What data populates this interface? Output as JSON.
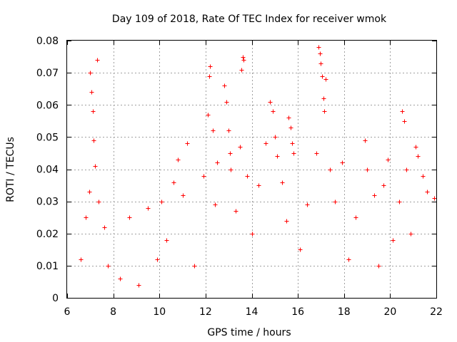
{
  "chart_data": {
    "type": "scatter",
    "title": "Day 109 of 2018, Rate Of TEC Index for receiver wmok",
    "xlabel": "GPS time / hours",
    "ylabel": "ROTI / TECUs",
    "xlim": [
      6,
      22
    ],
    "ylim": [
      0,
      0.08
    ],
    "x_ticks": [
      6,
      8,
      10,
      12,
      14,
      16,
      18,
      20,
      22
    ],
    "y_ticks": [
      0,
      0.01,
      0.02,
      0.03,
      0.04,
      0.05,
      0.06,
      0.07,
      0.08
    ],
    "x_tick_labels": [
      "6",
      "8",
      "10",
      "12",
      "14",
      "16",
      "18",
      "20",
      "22"
    ],
    "y_tick_labels": [
      "0",
      "0.01",
      "0.02",
      "0.03",
      "0.04",
      "0.05",
      "0.06",
      "0.07",
      "0.08"
    ],
    "grid": true,
    "marker": "+",
    "color": "#ff0000",
    "series": [
      {
        "name": "ROTI",
        "x": [
          6.6,
          6.8,
          6.95,
          7.0,
          7.05,
          7.1,
          7.15,
          7.2,
          7.3,
          7.35,
          7.6,
          7.75,
          8.3,
          8.7,
          9.1,
          9.5,
          9.9,
          10.1,
          10.3,
          10.6,
          10.8,
          11.0,
          11.2,
          11.5,
          11.9,
          12.1,
          12.15,
          12.2,
          12.3,
          12.4,
          12.5,
          12.8,
          12.9,
          13.0,
          13.05,
          13.1,
          13.3,
          13.5,
          13.55,
          13.6,
          13.65,
          13.8,
          14.0,
          14.3,
          14.6,
          14.8,
          14.9,
          15.0,
          15.1,
          15.3,
          15.5,
          15.6,
          15.7,
          15.75,
          15.8,
          16.1,
          16.4,
          16.8,
          16.9,
          16.95,
          17.0,
          17.05,
          17.1,
          17.15,
          17.2,
          17.4,
          17.6,
          17.9,
          18.2,
          18.5,
          18.9,
          19.0,
          19.3,
          19.5,
          19.7,
          19.9,
          20.1,
          20.4,
          20.5,
          20.6,
          20.7,
          20.9,
          21.1,
          21.2,
          21.4,
          21.6,
          21.9
        ],
        "y": [
          0.012,
          0.025,
          0.033,
          0.07,
          0.064,
          0.058,
          0.049,
          0.041,
          0.074,
          0.03,
          0.022,
          0.01,
          0.006,
          0.025,
          0.004,
          0.028,
          0.012,
          0.03,
          0.018,
          0.036,
          0.043,
          0.032,
          0.048,
          0.01,
          0.038,
          0.057,
          0.069,
          0.072,
          0.052,
          0.029,
          0.042,
          0.066,
          0.061,
          0.052,
          0.045,
          0.04,
          0.027,
          0.047,
          0.071,
          0.075,
          0.074,
          0.038,
          0.02,
          0.035,
          0.048,
          0.061,
          0.058,
          0.05,
          0.044,
          0.036,
          0.024,
          0.056,
          0.053,
          0.048,
          0.045,
          0.015,
          0.029,
          0.045,
          0.078,
          0.076,
          0.073,
          0.069,
          0.062,
          0.058,
          0.068,
          0.04,
          0.03,
          0.042,
          0.012,
          0.025,
          0.049,
          0.04,
          0.032,
          0.01,
          0.035,
          0.043,
          0.018,
          0.03,
          0.058,
          0.055,
          0.04,
          0.02,
          0.047,
          0.044,
          0.038,
          0.033,
          0.031
        ]
      }
    ]
  }
}
